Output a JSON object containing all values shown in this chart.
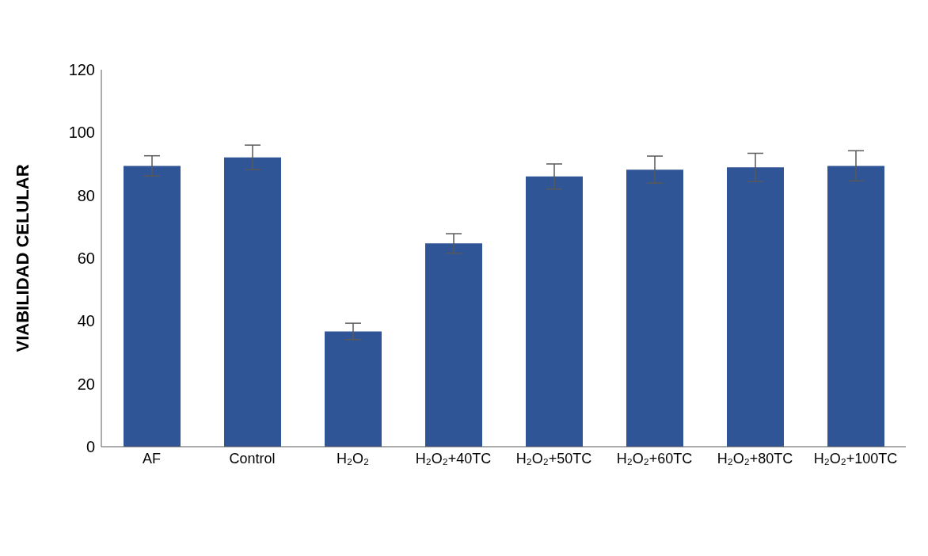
{
  "chart_data": {
    "type": "bar",
    "ylabel": "VIABILIDAD CELULAR",
    "categories": [
      "AF",
      "Control",
      "H₂O₂",
      "H₂O₂+40TC",
      "H₂O₂+50TC",
      "H₂O₂+60TC",
      "H₂O₂+80TC",
      "H₂O₂+100TC"
    ],
    "values": [
      89.4,
      92.1,
      36.7,
      64.7,
      86.0,
      88.2,
      88.9,
      89.4
    ],
    "errors": [
      3.2,
      3.9,
      2.6,
      3.1,
      4.0,
      4.3,
      4.5,
      4.8
    ],
    "color": "#2f5597",
    "ylim": [
      0,
      120
    ],
    "yticks": [
      0,
      20,
      40,
      60,
      80,
      100,
      120
    ],
    "grid": false,
    "legend": false
  }
}
